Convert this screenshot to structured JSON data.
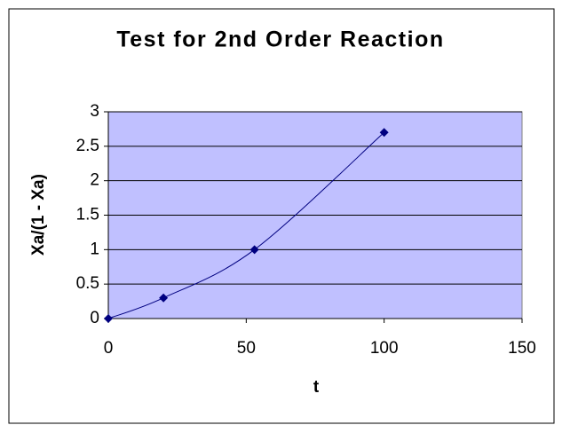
{
  "chart_data": {
    "type": "scatter",
    "title": "Test for 2nd Order Reaction",
    "x_label": "t",
    "y_label": "Xa/(1 - Xa)",
    "series": [
      {
        "color": "#000080",
        "x": [
          0,
          20,
          53,
          100
        ],
        "values": [
          0,
          0.3,
          1.0,
          2.7
        ]
      }
    ],
    "xlim": [
      0,
      150
    ],
    "xticks": [
      0,
      50,
      100,
      150
    ],
    "ylim": [
      0,
      3
    ],
    "yticks": [
      0,
      0.5,
      1,
      1.5,
      2,
      2.5,
      3
    ],
    "grid": true,
    "smooth": true,
    "plot_background": "#c0c0ff"
  }
}
